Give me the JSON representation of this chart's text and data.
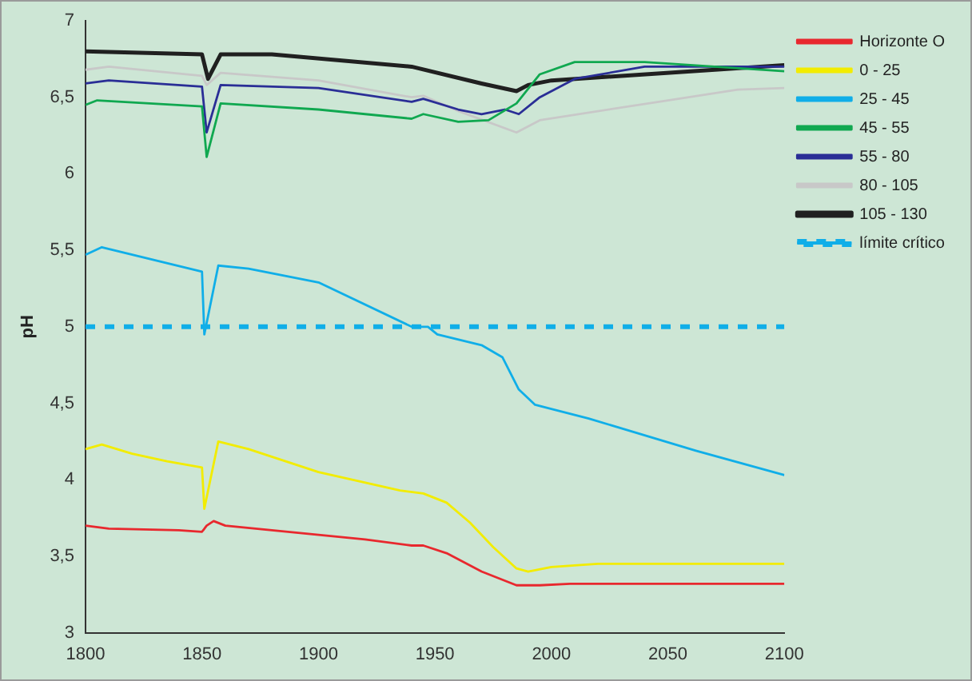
{
  "chart_data": {
    "type": "line",
    "ylabel": "pH",
    "legend": "right",
    "grid": false,
    "marker": "none",
    "xlim": [
      1800,
      2100
    ],
    "xticks": [
      1800,
      1850,
      1900,
      1950,
      2000,
      2050,
      2100
    ],
    "ylim": [
      3,
      7
    ],
    "yticks": [
      3,
      {
        "value": 3.5,
        "label": "3,5"
      },
      4,
      {
        "value": 4.5,
        "label": "4,5"
      },
      5,
      {
        "value": 5.5,
        "label": "5,5"
      },
      6,
      {
        "value": 6.5,
        "label": "6,5"
      },
      7
    ],
    "ref_lines": [
      {
        "axis": "y",
        "value": 5,
        "label": "límite crítico",
        "color": "#10aee8",
        "line_style": "dashed"
      }
    ],
    "series": [
      {
        "name": "Horizonte O",
        "color": "#e8282e",
        "x": [
          1800,
          1810,
          1840,
          1850,
          1852,
          1855,
          1860,
          1900,
          1920,
          1940,
          1945,
          1955,
          1970,
          1985,
          1995,
          2008,
          2044,
          2100
        ],
        "values": [
          3.7,
          3.68,
          3.67,
          3.66,
          3.7,
          3.73,
          3.7,
          3.64,
          3.61,
          3.57,
          3.57,
          3.52,
          3.4,
          3.31,
          3.31,
          3.32,
          3.32,
          3.32
        ]
      },
      {
        "name": "0 - 25",
        "color": "#f2ec00",
        "x": [
          1800,
          1807,
          1820,
          1835,
          1850,
          1851,
          1857,
          1870,
          1900,
          1935,
          1945,
          1955,
          1965,
          1975,
          1985,
          1990,
          2000,
          2020,
          2100
        ],
        "values": [
          4.2,
          4.23,
          4.17,
          4.12,
          4.08,
          3.81,
          4.25,
          4.2,
          4.05,
          3.93,
          3.91,
          3.85,
          3.72,
          3.56,
          3.42,
          3.4,
          3.43,
          3.45,
          3.45
        ]
      },
      {
        "name": "25 - 45",
        "color": "#10aee8",
        "x": [
          1800,
          1807,
          1850,
          1851,
          1857,
          1870,
          1900,
          1940,
          1947,
          1951,
          1970,
          1979,
          1986,
          1993,
          2016,
          2062,
          2100
        ],
        "values": [
          5.47,
          5.52,
          5.36,
          4.95,
          5.4,
          5.38,
          5.29,
          5.0,
          5.0,
          4.95,
          4.88,
          4.8,
          4.59,
          4.49,
          4.4,
          4.19,
          4.03
        ]
      },
      {
        "name": "45 - 55",
        "color": "#10a850",
        "x": [
          1800,
          1805,
          1850,
          1852,
          1858,
          1900,
          1940,
          1945,
          1960,
          1973,
          1985,
          1995,
          2010,
          2040,
          2100
        ],
        "values": [
          6.45,
          6.48,
          6.44,
          6.11,
          6.46,
          6.42,
          6.36,
          6.39,
          6.34,
          6.35,
          6.46,
          6.65,
          6.73,
          6.73,
          6.67
        ]
      },
      {
        "name": "55 - 80",
        "color": "#2a2e96",
        "x": [
          1800,
          1810,
          1850,
          1852,
          1858,
          1900,
          1940,
          1945,
          1960,
          1970,
          1980,
          1986,
          1995,
          2010,
          2040,
          2100
        ],
        "values": [
          6.59,
          6.61,
          6.57,
          6.27,
          6.58,
          6.56,
          6.47,
          6.49,
          6.42,
          6.39,
          6.42,
          6.39,
          6.5,
          6.62,
          6.7,
          6.7
        ]
      },
      {
        "name": "80 - 105",
        "color": "#c8c8c8",
        "x": [
          1800,
          1810,
          1850,
          1852,
          1858,
          1900,
          1940,
          1945,
          1960,
          1985,
          1995,
          2050,
          2080,
          2100
        ],
        "values": [
          6.68,
          6.7,
          6.64,
          6.58,
          6.66,
          6.61,
          6.5,
          6.51,
          6.41,
          6.27,
          6.35,
          6.48,
          6.55,
          6.56
        ]
      },
      {
        "name": "105 - 130",
        "color": "#202020",
        "x": [
          1800,
          1850,
          1852.6,
          1858,
          1880,
          1940,
          1970,
          1985,
          1990,
          2000,
          2030,
          2100
        ],
        "values": [
          6.8,
          6.78,
          6.62,
          6.78,
          6.78,
          6.7,
          6.59,
          6.54,
          6.58,
          6.61,
          6.64,
          6.71
        ]
      }
    ]
  }
}
